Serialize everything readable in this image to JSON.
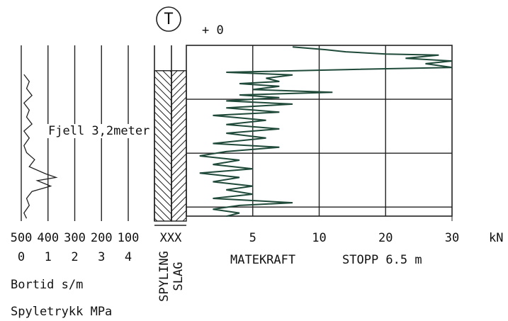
{
  "chart_data": {
    "type": "sounding",
    "header": {
      "symbol": "T",
      "offset": "+ 0"
    },
    "annotation": "Fjell 3,2meter",
    "ylim": [
      0,
      3.26
    ],
    "depth_grid": [
      1,
      2,
      3
    ],
    "left_axis": {
      "top_ticks": [
        500,
        400,
        300,
        200,
        100
      ],
      "bottom_ticks": [
        0,
        1,
        2,
        3,
        4
      ],
      "top_label": "Bortid s/m",
      "bottom_label": "Spyletrykk MPa",
      "xlim": [
        0,
        4
      ]
    },
    "middle": {
      "label": "XXX",
      "spyling": {
        "name": "SPYLING",
        "range": [
          0.47,
          3.26
        ]
      },
      "slag": {
        "name": "SLAG",
        "range": [
          0.47,
          3.26
        ]
      }
    },
    "right_axis": {
      "breaks": [
        0,
        5,
        10,
        20,
        30
      ],
      "xticks": [
        5,
        10,
        20,
        30
      ],
      "unit": "kN",
      "label": "MATEKRAFT",
      "stop": "STOPP 6.5 m"
    },
    "series": [
      {
        "name": "Matekraft",
        "color": "#1f4a3a",
        "depth": [
          0.03,
          0.08,
          0.12,
          0.16,
          0.18,
          0.24,
          0.29,
          0.34,
          0.41,
          0.45,
          0.5,
          0.55,
          0.61,
          0.67,
          0.71,
          0.76,
          0.82,
          0.87,
          0.92,
          0.97,
          1.03,
          1.09,
          1.16,
          1.24,
          1.3,
          1.39,
          1.47,
          1.55,
          1.63,
          1.72,
          1.82,
          1.89,
          1.97,
          2.05,
          2.13,
          2.21,
          2.29,
          2.37,
          2.45,
          2.53,
          2.61,
          2.68,
          2.76,
          2.84,
          2.92,
          2.97,
          3.04,
          3.11,
          3.17
        ],
        "values": [
          8,
          11,
          14,
          20,
          28,
          23,
          30,
          26,
          30,
          14,
          3,
          8,
          6,
          7,
          4,
          7,
          5,
          12,
          4,
          7,
          3,
          8,
          3,
          7,
          2,
          6,
          3,
          7,
          3,
          6,
          2,
          7,
          3,
          1,
          4,
          2,
          5,
          1,
          4,
          2,
          5,
          3,
          5,
          2,
          8,
          4,
          2,
          4,
          3
        ]
      },
      {
        "name": "Spyletrykk",
        "color": "#222222",
        "depth": [
          0.54,
          0.67,
          0.8,
          0.93,
          1.07,
          1.2,
          1.33,
          1.46,
          1.59,
          1.72,
          1.86,
          1.99,
          2.12,
          2.25,
          2.38,
          2.45,
          2.51,
          2.61,
          2.71,
          2.84,
          2.97,
          3.11,
          3.21
        ],
        "values": [
          0.1,
          0.3,
          0.2,
          0.4,
          0.1,
          0.3,
          0.2,
          0.4,
          0.1,
          0.3,
          0.1,
          0.2,
          0.5,
          0.3,
          0.9,
          1.3,
          0.6,
          1.1,
          0.4,
          0.2,
          0.3,
          0.1,
          0.2
        ]
      }
    ]
  }
}
